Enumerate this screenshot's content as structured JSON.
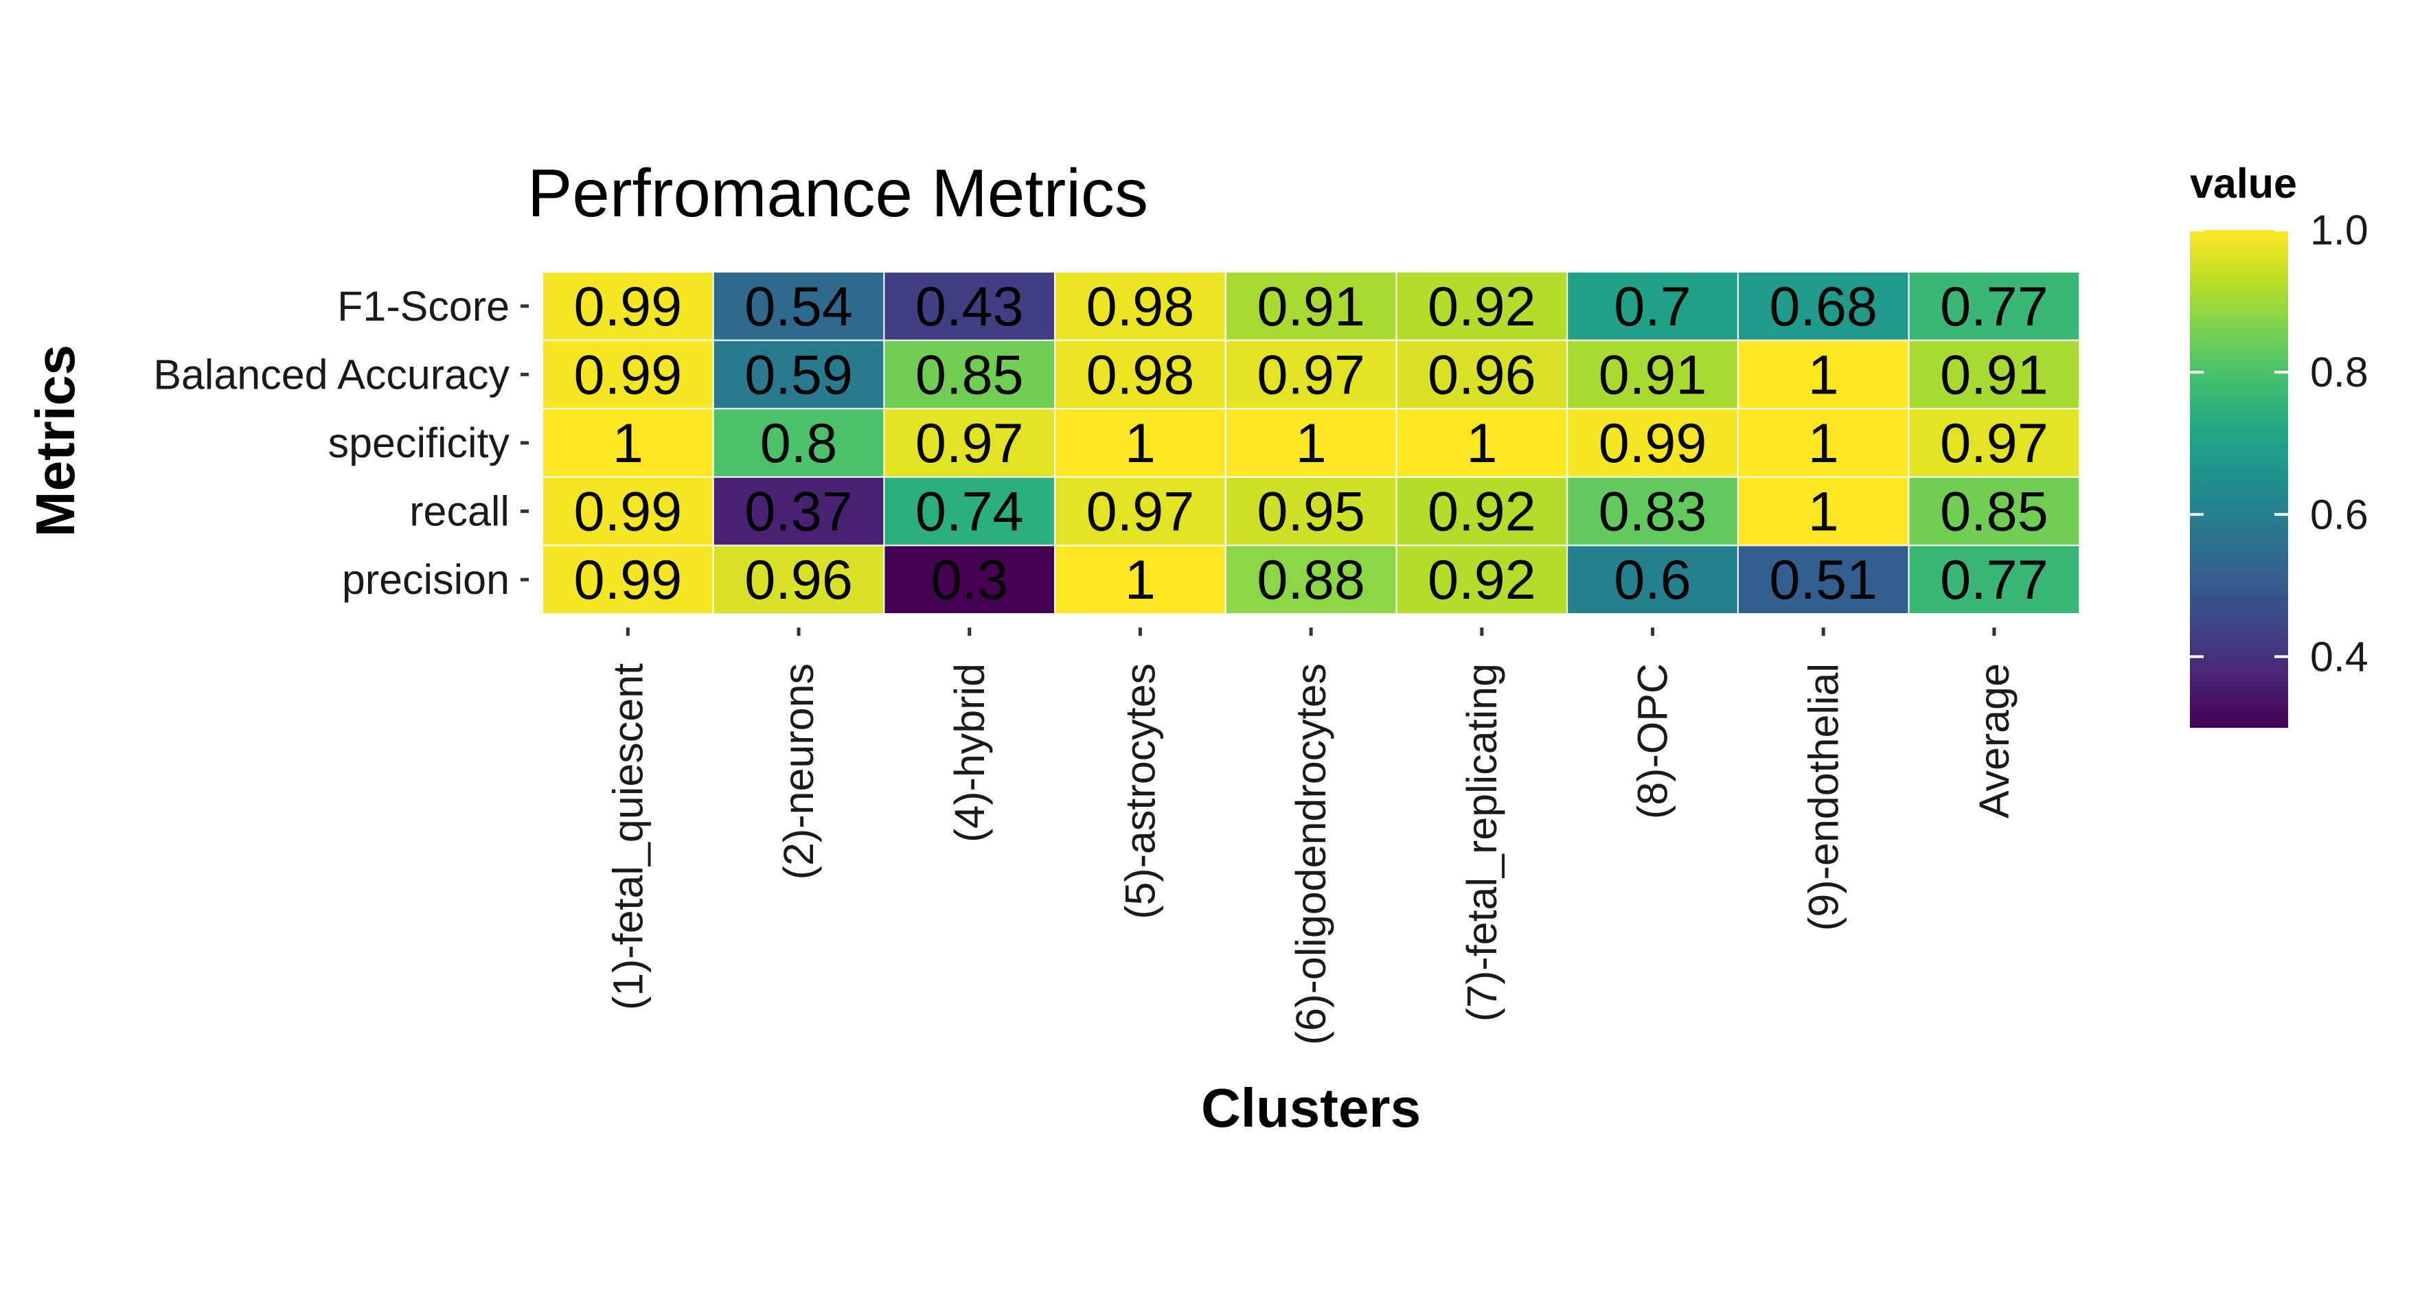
{
  "chart_data": {
    "type": "heatmap",
    "title": "Perfromance Metrics",
    "xlabel": "Clusters",
    "ylabel": "Metrics",
    "x_categories": [
      "(1)-fetal_quiescent",
      "(2)-neurons",
      "(4)-hybrid",
      "(5)-astrocytes",
      "(6)-oligodendrocytes",
      "(7)-fetal_replicating",
      "(8)-OPC",
      "(9)-endothelial",
      "Average"
    ],
    "y_categories": [
      "F1-Score",
      "Balanced Accuracy",
      "specificity",
      "recall",
      "precision"
    ],
    "values": [
      [
        0.99,
        0.54,
        0.43,
        0.98,
        0.91,
        0.92,
        0.7,
        0.68,
        0.77
      ],
      [
        0.99,
        0.59,
        0.85,
        0.98,
        0.97,
        0.96,
        0.91,
        1,
        0.91
      ],
      [
        1,
        0.8,
        0.97,
        1,
        1,
        1,
        0.99,
        1,
        0.97
      ],
      [
        0.99,
        0.37,
        0.74,
        0.97,
        0.95,
        0.92,
        0.83,
        1,
        0.85
      ],
      [
        0.99,
        0.96,
        0.3,
        1,
        0.88,
        0.92,
        0.6,
        0.51,
        0.77
      ]
    ],
    "labels": [
      [
        "0.99",
        "0.54",
        "0.43",
        "0.98",
        "0.91",
        "0.92",
        "0.7",
        "0.68",
        "0.77"
      ],
      [
        "0.99",
        "0.59",
        "0.85",
        "0.98",
        "0.97",
        "0.96",
        "0.91",
        "1",
        "0.91"
      ],
      [
        "1",
        "0.8",
        "0.97",
        "1",
        "1",
        "1",
        "0.99",
        "1",
        "0.97"
      ],
      [
        "0.99",
        "0.37",
        "0.74",
        "0.97",
        "0.95",
        "0.92",
        "0.83",
        "1",
        "0.85"
      ],
      [
        "0.99",
        "0.96",
        "0.3",
        "1",
        "0.88",
        "0.92",
        "0.6",
        "0.51",
        "0.77"
      ]
    ],
    "colorscale": "viridis",
    "value_range": [
      0.3,
      1.0
    ],
    "legend": {
      "title": "value",
      "ticks": [
        0.4,
        0.6,
        0.8,
        1.0
      ],
      "tick_labels": [
        "0.4",
        "0.6",
        "0.8",
        "1.0"
      ],
      "placement": "right"
    },
    "grid": false
  }
}
